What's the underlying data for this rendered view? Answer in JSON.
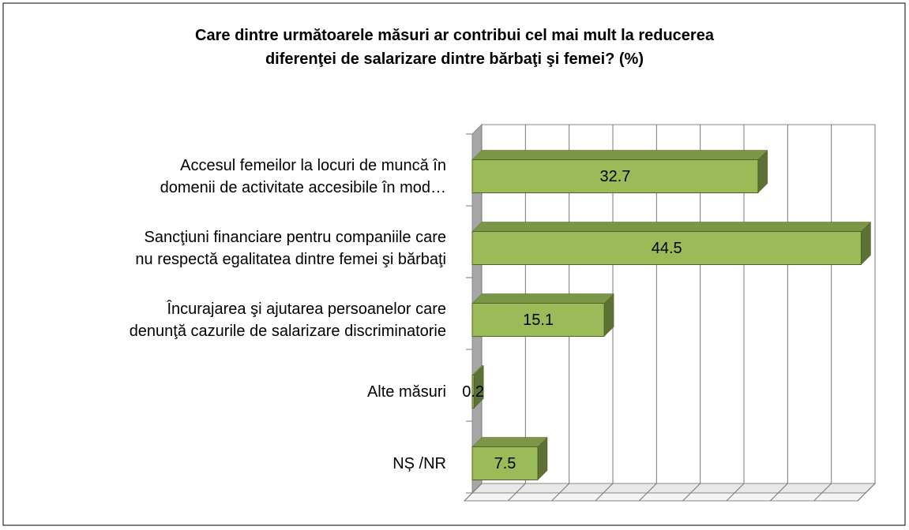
{
  "chart_data": {
    "type": "bar3d",
    "title": "Care dintre următoarele măsuri ar contribui cel mai mult la reducerea\ndiferenţei de salarizare dintre bărbaţi şi femei? (%)",
    "categories": [
      "Accesul femeilor la locuri de muncă în\ndomenii de activitate accesibile în mod…",
      "Sancţiuni financiare pentru companiile care\nnu respectă egalitatea dintre femei şi bărbaţi",
      "Încurajarea şi ajutarea persoanelor care\ndenunţă cazurile de salarizare discriminatorie",
      "Alte măsuri",
      "NȘ /NR"
    ],
    "values": [
      32.7,
      44.5,
      15.1,
      0.2,
      7.5
    ],
    "color": "#9bbb59",
    "xlim": [
      0,
      45
    ],
    "xticks": [
      0,
      5,
      10,
      15,
      20,
      25,
      30,
      35,
      40,
      45
    ],
    "grid": true
  }
}
